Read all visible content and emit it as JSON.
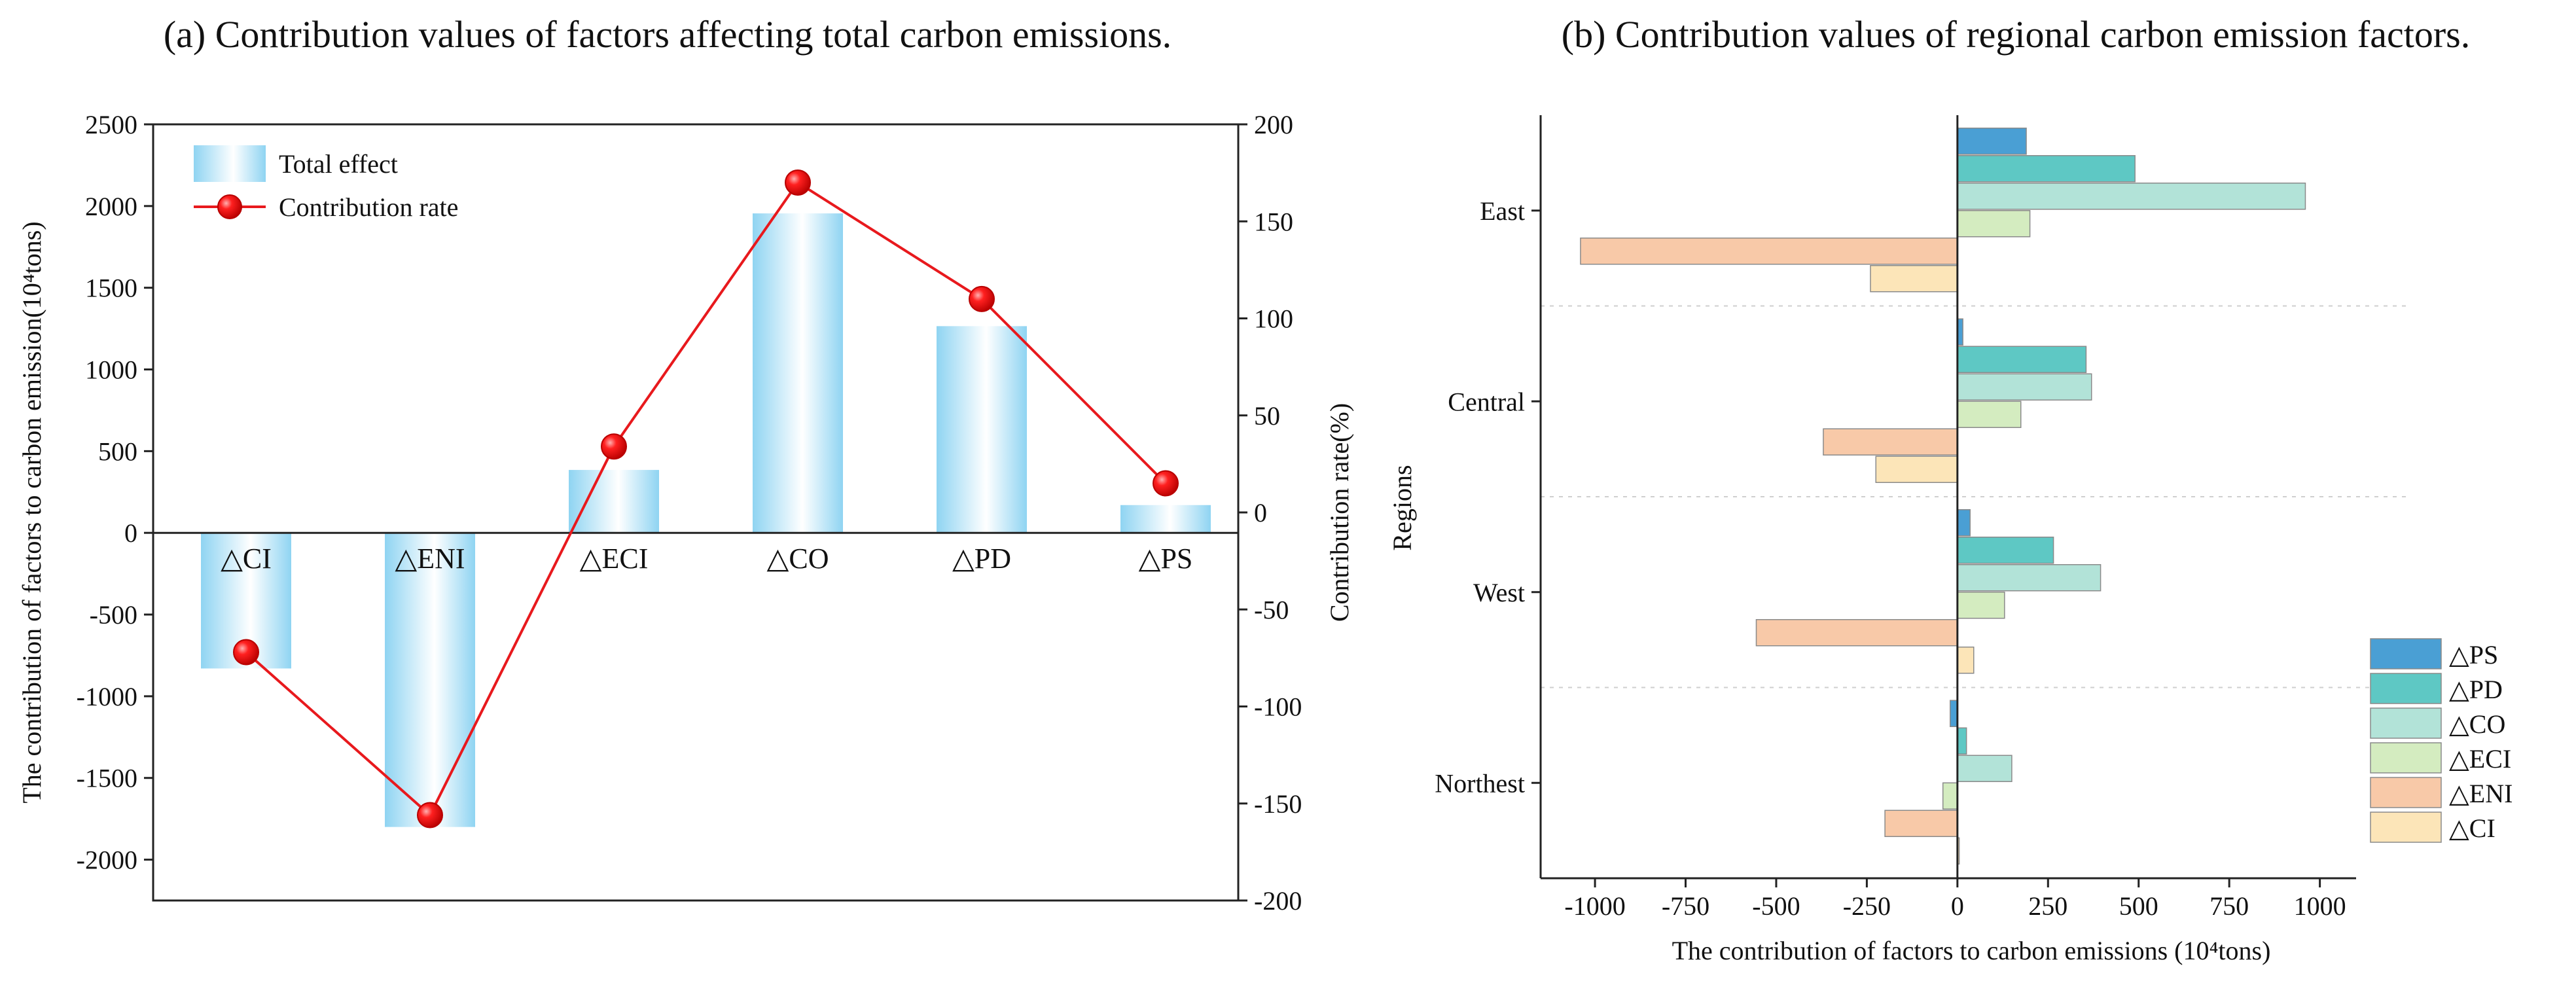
{
  "chart_data": [
    {
      "type": "bar",
      "panel": "a",
      "title": "(a)  Contribution values of factors affecting total carbon emissions.",
      "categories": [
        "△CI",
        "△ENI",
        "△ECI",
        "△CO",
        "△PD",
        "△PS"
      ],
      "ylabel": "The contribution of factors to carbon emission(10⁴tons)",
      "y2label": "Contribution rate(%)",
      "ylim": [
        -2250,
        2500
      ],
      "yticks": [
        2500,
        2000,
        1500,
        1000,
        500,
        0,
        -500,
        -1000,
        -1500,
        -2000
      ],
      "y2lim": [
        -200,
        200
      ],
      "y2ticks": [
        200,
        150,
        100,
        50,
        0,
        -50,
        -100,
        -150,
        -200
      ],
      "series": [
        {
          "name": "Total effect",
          "kind": "bar",
          "axis": "left",
          "values": [
            -830,
            -1800,
            385,
            1955,
            1265,
            170
          ]
        },
        {
          "name": "Contribution rate",
          "kind": "line",
          "axis": "right",
          "color": "#e8191d",
          "values": [
            -72,
            -156,
            34,
            170,
            110,
            15
          ]
        }
      ],
      "legend": [
        "Total effect",
        "Contribution rate"
      ],
      "legend_position": "top-left"
    },
    {
      "type": "bar",
      "orientation": "horizontal",
      "panel": "b",
      "title": "(b)  Contribution values of regional carbon emission factors.",
      "categories": [
        "East",
        "Central",
        "West",
        "Northest"
      ],
      "ylabel": "Regions",
      "xlabel": "The contribution of factors to carbon emissions (10⁴tons)",
      "xlim": [
        -1150,
        1100
      ],
      "xticks": [
        "-1000",
        "-750",
        "-500",
        "-250",
        "0",
        "250",
        "500",
        "750",
        "1000"
      ],
      "series": [
        {
          "name": "△PS",
          "color": "#4a9fd4",
          "values": [
            190,
            15,
            35,
            -20
          ]
        },
        {
          "name": "△PD",
          "color": "#5ec8c4",
          "values": [
            490,
            355,
            265,
            25
          ]
        },
        {
          "name": "△CO",
          "color": "#b2e3d8",
          "values": [
            960,
            370,
            395,
            150
          ]
        },
        {
          "name": "△ECI",
          "color": "#d4ecc0",
          "values": [
            200,
            175,
            130,
            -40
          ]
        },
        {
          "name": "△ENI",
          "color": "#f8c9a8",
          "values": [
            -1040,
            -370,
            -555,
            -200
          ]
        },
        {
          "name": "△CI",
          "color": "#fce5b8",
          "values": [
            -240,
            -225,
            45,
            5
          ]
        }
      ],
      "legend": [
        "△PS",
        "△PD",
        "△CO",
        "△ECI",
        "△ENI",
        "△CI"
      ],
      "legend_position": "bottom-right"
    }
  ]
}
